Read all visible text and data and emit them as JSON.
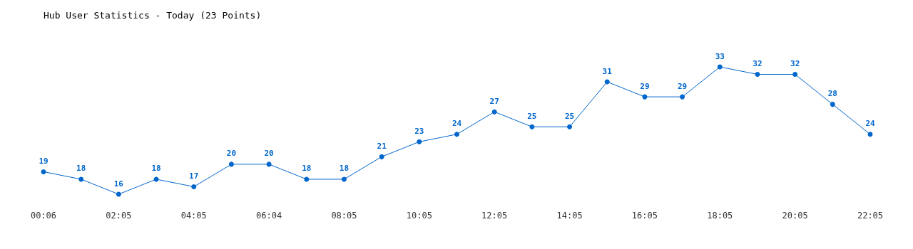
{
  "chart_data": {
    "type": "line",
    "title": "Hub User Statistics - Today (23 Points)",
    "categories": [
      "00:06",
      null,
      "02:05",
      null,
      "04:05",
      null,
      "06:04",
      null,
      "08:05",
      null,
      "10:05",
      null,
      "12:05",
      null,
      "14:05",
      null,
      "16:05",
      null,
      "18:05",
      null,
      "20:05",
      null,
      "22:05"
    ],
    "series": [
      {
        "color": "#0066cc",
        "values": [
          19,
          18,
          16,
          18,
          17,
          20,
          20,
          18,
          18,
          21,
          23,
          24,
          27,
          25,
          25,
          31,
          29,
          29,
          33,
          32,
          32,
          28,
          24
        ]
      }
    ],
    "data_labels": true,
    "marker": "circle",
    "line_style": "solid"
  }
}
